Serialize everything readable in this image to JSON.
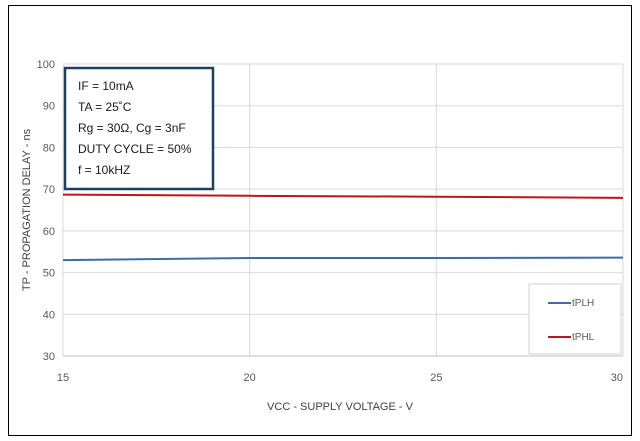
{
  "chart_data": {
    "type": "line",
    "xlabel": "VCC - SUPPLY VOLTAGE - V",
    "ylabel": "TP - PROPAGATION DELAY - ns",
    "xlim": [
      15,
      30
    ],
    "ylim": [
      30,
      100
    ],
    "x_ticks": [
      "15",
      "20",
      "25",
      "30"
    ],
    "y_ticks": [
      "30",
      "40",
      "50",
      "60",
      "70",
      "80",
      "90",
      "100"
    ],
    "grid": true,
    "legend_position": "bottom-right",
    "conditions": [
      "IF = 10mA",
      "TA = 25˚C",
      "Rg = 30Ω, Cg = 3nF",
      "DUTY CYCLE = 50%",
      "f = 10kHZ"
    ],
    "series": [
      {
        "name": "tPLH",
        "color": "#3a6ea5",
        "x": [
          15,
          20,
          25,
          30
        ],
        "y": [
          53.0,
          53.5,
          53.5,
          53.6
        ]
      },
      {
        "name": "tPHL",
        "color": "#c0141b",
        "x": [
          15,
          20,
          25,
          30
        ],
        "y": [
          68.7,
          68.4,
          68.2,
          67.9
        ]
      }
    ]
  }
}
